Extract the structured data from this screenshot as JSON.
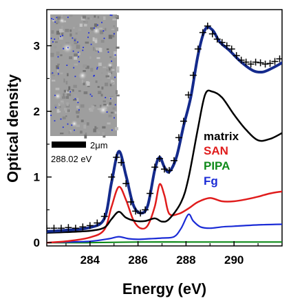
{
  "chart_data": {
    "type": "line",
    "title": "",
    "xlabel": "Energy (eV)",
    "ylabel": "Optical density",
    "xlim": [
      282.2,
      292.0
    ],
    "ylim": [
      -0.05,
      3.55
    ],
    "x_ticks": [
      284,
      286,
      288,
      290
    ],
    "y_ticks": [
      0,
      1,
      2,
      3
    ],
    "grid": false,
    "legend_placement": "right",
    "colors": {
      "matrix": "#000000",
      "SAN": "#e01c1c",
      "PIPA": "#0f8a1a",
      "Fg": "#1a2bd6",
      "fit": "#142a8c",
      "data_markers": "#000000"
    },
    "series": [
      {
        "name": "matrix",
        "x": [
          282.2,
          283.0,
          284.0,
          284.6,
          284.9,
          285.2,
          285.5,
          285.9,
          286.3,
          286.7,
          287.0,
          287.3,
          287.8,
          288.1,
          288.5,
          288.8,
          289.1,
          289.5,
          290.0,
          290.5,
          291.0,
          291.5,
          292.0
        ],
        "y": [
          0.15,
          0.16,
          0.18,
          0.23,
          0.36,
          0.47,
          0.38,
          0.33,
          0.33,
          0.37,
          0.32,
          0.36,
          0.62,
          0.98,
          1.75,
          2.26,
          2.3,
          2.21,
          1.95,
          1.72,
          1.56,
          1.58,
          1.67
        ]
      },
      {
        "name": "SAN",
        "x": [
          282.2,
          283.0,
          284.0,
          284.6,
          284.9,
          285.2,
          285.5,
          285.8,
          286.1,
          286.4,
          286.7,
          286.9,
          287.1,
          287.3,
          287.7,
          288.1,
          288.5,
          289.0,
          289.5,
          290.0,
          290.5,
          291.0,
          291.5,
          292.0
        ],
        "y": [
          0.0,
          0.02,
          0.08,
          0.2,
          0.55,
          0.85,
          0.65,
          0.35,
          0.22,
          0.26,
          0.55,
          0.89,
          0.72,
          0.44,
          0.44,
          0.52,
          0.62,
          0.68,
          0.63,
          0.63,
          0.66,
          0.7,
          0.75,
          0.78
        ]
      },
      {
        "name": "PIPA",
        "x": [
          282.2,
          284.0,
          286.0,
          288.0,
          290.0,
          292.0
        ],
        "y": [
          0.0,
          0.0,
          0.01,
          0.01,
          0.01,
          0.01
        ]
      },
      {
        "name": "Fg",
        "x": [
          282.2,
          283.0,
          284.0,
          284.8,
          285.2,
          285.6,
          286.0,
          286.5,
          287.0,
          287.5,
          287.8,
          288.1,
          288.3,
          288.6,
          289.0,
          289.5,
          290.0,
          291.0,
          292.0
        ],
        "y": [
          0.0,
          0.01,
          0.02,
          0.06,
          0.09,
          0.06,
          0.05,
          0.06,
          0.07,
          0.09,
          0.22,
          0.43,
          0.33,
          0.24,
          0.22,
          0.24,
          0.25,
          0.27,
          0.28
        ]
      },
      {
        "x": [
          282.2,
          283.0,
          284.0,
          284.6,
          284.9,
          285.2,
          285.5,
          285.8,
          286.1,
          286.4,
          286.7,
          286.9,
          287.1,
          287.3,
          287.6,
          287.9,
          288.2,
          288.5,
          288.8,
          289.1,
          289.4,
          289.8,
          290.3,
          290.8,
          291.2,
          291.6,
          292.0
        ],
        "y": [
          0.17,
          0.19,
          0.23,
          0.37,
          0.92,
          1.39,
          1.02,
          0.58,
          0.45,
          0.56,
          1.11,
          1.3,
          1.15,
          1.08,
          1.3,
          1.78,
          2.22,
          2.86,
          3.25,
          3.24,
          3.06,
          2.93,
          2.75,
          2.62,
          2.6,
          2.66,
          2.74
        ]
      }
    ],
    "markers": {
      "x": [
        282.2,
        282.5,
        282.8,
        283.1,
        283.4,
        283.7,
        284.0,
        284.3,
        284.6,
        284.9,
        285.1,
        285.3,
        285.5,
        285.7,
        285.9,
        286.1,
        286.3,
        286.5,
        286.7,
        286.9,
        287.1,
        287.3,
        287.5,
        287.7,
        287.9,
        288.1,
        288.3,
        288.5,
        288.7,
        288.9,
        289.1,
        289.3,
        289.5,
        289.7,
        289.9,
        290.1,
        290.3,
        290.5,
        290.7,
        290.9,
        291.1,
        291.3,
        291.5,
        291.7,
        291.9
      ],
      "y": [
        0.22,
        0.22,
        0.22,
        0.23,
        0.22,
        0.24,
        0.26,
        0.3,
        0.4,
        1.0,
        1.3,
        1.22,
        0.9,
        0.62,
        0.48,
        0.45,
        0.5,
        0.75,
        1.15,
        1.28,
        1.12,
        1.1,
        1.25,
        1.6,
        1.85,
        2.25,
        2.55,
        2.95,
        3.2,
        3.3,
        3.18,
        3.1,
        3.05,
        3.0,
        2.95,
        2.85,
        2.78,
        2.75,
        2.72,
        2.75,
        2.74,
        2.72,
        2.73,
        2.76,
        2.8
      ]
    },
    "inset": {
      "scalebar_label": "2μm",
      "energy_label": "288.02 eV"
    }
  }
}
